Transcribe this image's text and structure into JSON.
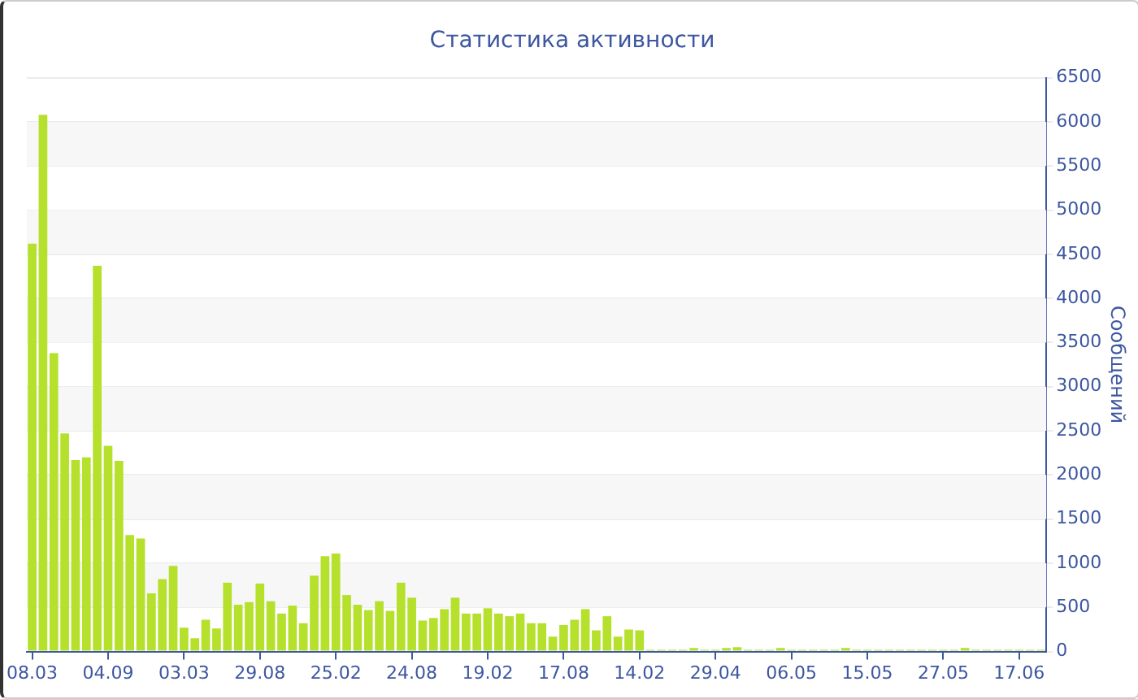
{
  "chart_data": {
    "type": "bar",
    "title": "Статистика активности",
    "ylabel": "Сообщений",
    "categories": [
      "08.03",
      null,
      null,
      null,
      null,
      null,
      null,
      "04.09",
      null,
      null,
      null,
      null,
      null,
      null,
      "03.03",
      null,
      null,
      null,
      null,
      null,
      null,
      "29.08",
      null,
      null,
      null,
      null,
      null,
      null,
      "25.02",
      null,
      null,
      null,
      null,
      null,
      null,
      "24.08",
      null,
      null,
      null,
      null,
      null,
      null,
      "19.02",
      null,
      null,
      null,
      null,
      null,
      null,
      "17.08",
      null,
      null,
      null,
      null,
      null,
      null,
      "14.02",
      null,
      null,
      null,
      null,
      null,
      null,
      "29.04",
      null,
      null,
      null,
      null,
      null,
      null,
      "06.05",
      null,
      null,
      null,
      null,
      null,
      null,
      "15.05",
      null,
      null,
      null,
      null,
      null,
      null,
      "27.05",
      null,
      null,
      null,
      null,
      null,
      null,
      "17.06",
      null,
      null
    ],
    "values": [
      4620,
      6080,
      3380,
      2470,
      2170,
      2200,
      4370,
      2330,
      2160,
      1320,
      1280,
      660,
      820,
      970,
      270,
      150,
      360,
      260,
      780,
      530,
      560,
      770,
      570,
      430,
      520,
      320,
      860,
      1080,
      1110,
      640,
      530,
      470,
      570,
      460,
      780,
      610,
      350,
      380,
      480,
      610,
      430,
      430,
      490,
      430,
      400,
      430,
      320,
      320,
      170,
      300,
      360,
      480,
      240,
      400,
      170,
      250,
      240,
      20,
      20,
      20,
      20,
      40,
      20,
      20,
      40,
      50,
      20,
      20,
      20,
      40,
      20,
      20,
      20,
      20,
      20,
      40,
      20,
      20,
      20,
      20,
      20,
      20,
      20,
      20,
      20,
      20,
      40,
      20,
      20,
      20,
      20,
      20,
      20,
      20
    ],
    "color": "#b5e02c",
    "ylim": [
      0,
      6500
    ],
    "yticks": [
      0,
      500,
      1000,
      1500,
      2000,
      2500,
      3000,
      3500,
      4000,
      4500,
      5000,
      5500,
      6000,
      6500
    ],
    "grid": "y"
  }
}
